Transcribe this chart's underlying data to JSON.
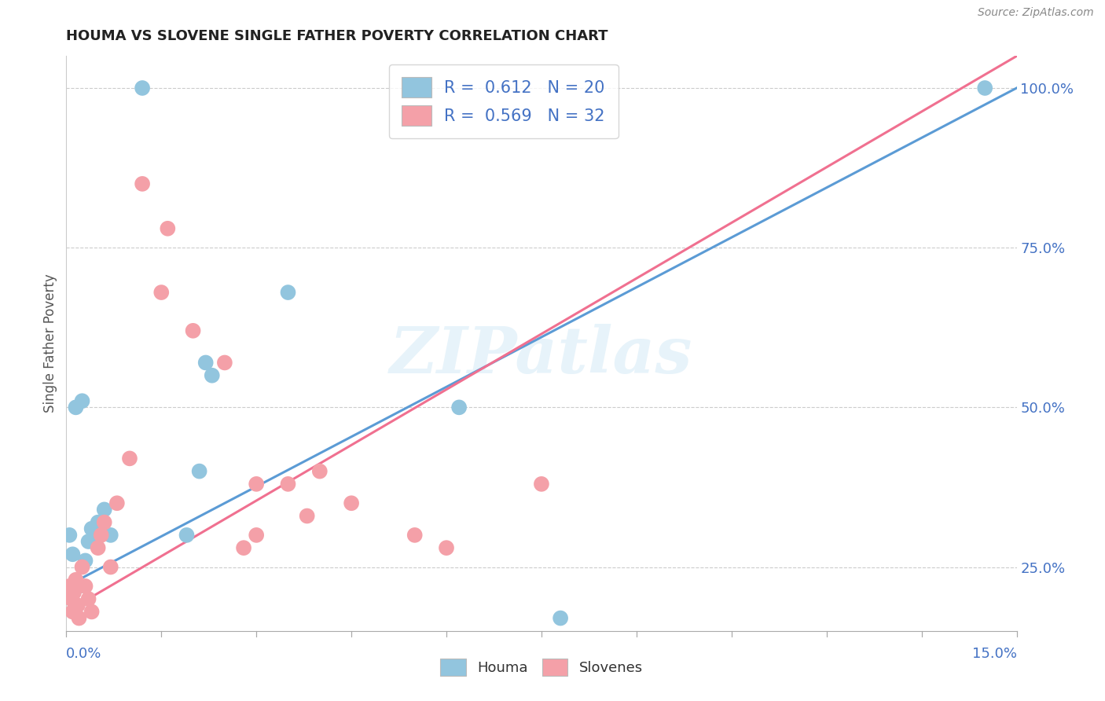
{
  "title": "HOUMA VS SLOVENE SINGLE FATHER POVERTY CORRELATION CHART",
  "source": "Source: ZipAtlas.com",
  "ylabel": "Single Father Poverty",
  "xmin": 0.0,
  "xmax": 15.0,
  "ymin": 15.0,
  "ymax": 105.0,
  "yticks": [
    25,
    50,
    75,
    100
  ],
  "ytick_labels": [
    "25.0%",
    "50.0%",
    "75.0%",
    "100.0%"
  ],
  "xtick_left_label": "0.0%",
  "xtick_right_label": "15.0%",
  "houma_R": 0.612,
  "houma_N": 20,
  "slovene_R": 0.569,
  "slovene_N": 32,
  "houma_color": "#92c5de",
  "slovene_color": "#f4a0a8",
  "houma_line_color": "#5b9bd5",
  "slovene_line_color": "#f07090",
  "houma_scatter_x": [
    1.2,
    0.05,
    0.1,
    0.2,
    0.3,
    0.35,
    0.4,
    0.5,
    0.15,
    0.25,
    0.6,
    0.7,
    2.2,
    2.3,
    1.9,
    2.1,
    3.5,
    6.2,
    7.8,
    14.5
  ],
  "houma_scatter_y": [
    100,
    30,
    27,
    22,
    26,
    29,
    31,
    32,
    50,
    51,
    34,
    30,
    57,
    55,
    30,
    40,
    68,
    50,
    17,
    100
  ],
  "slovene_scatter_x": [
    0.05,
    0.08,
    0.1,
    0.12,
    0.15,
    0.18,
    0.2,
    0.25,
    0.3,
    0.35,
    0.4,
    0.5,
    0.55,
    0.6,
    0.7,
    0.8,
    1.0,
    1.2,
    1.5,
    1.6,
    2.0,
    2.5,
    3.0,
    3.5,
    3.8,
    4.0,
    4.5,
    5.5,
    6.0,
    3.0,
    7.5,
    2.8
  ],
  "slovene_scatter_y": [
    22,
    20,
    18,
    21,
    23,
    19,
    17,
    25,
    22,
    20,
    18,
    28,
    30,
    32,
    25,
    35,
    42,
    85,
    68,
    78,
    62,
    57,
    38,
    38,
    33,
    40,
    35,
    30,
    28,
    30,
    38,
    28
  ],
  "houma_line_x": [
    0.0,
    15.0
  ],
  "houma_line_y": [
    22.0,
    100.0
  ],
  "slovene_line_x": [
    0.0,
    15.0
  ],
  "slovene_line_y": [
    18.0,
    105.0
  ],
  "legend_text_color": "#4472c4",
  "legend_n_color": "#4472c4",
  "watermark_text": "ZIPatlas",
  "background_color": "#ffffff",
  "grid_color": "#cccccc",
  "grid_linestyle": "--"
}
